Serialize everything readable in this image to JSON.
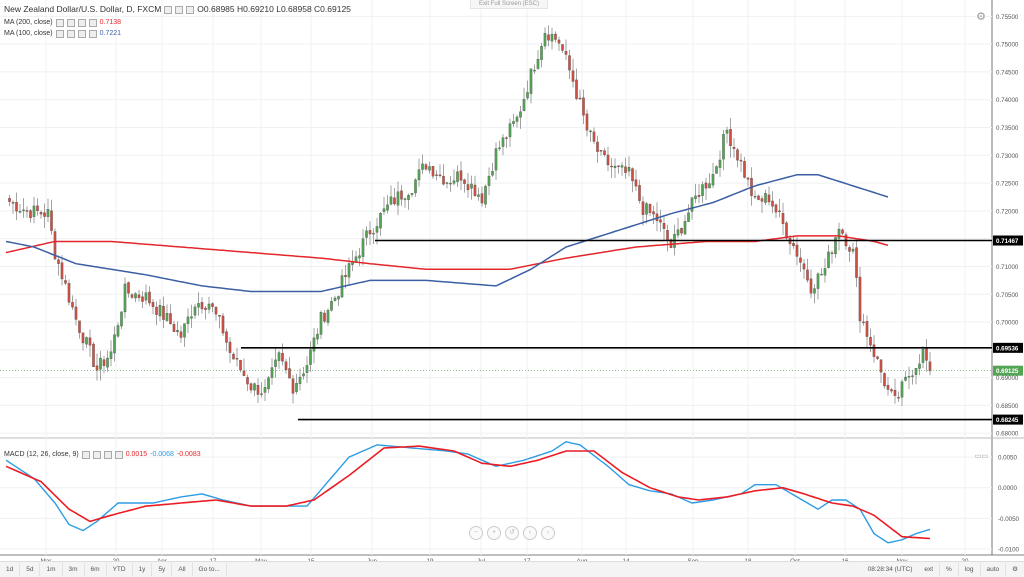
{
  "header": {
    "title": "New Zealand Dollar/U.S. Dollar, D, FXCM",
    "ohlc": "O0.68985 H0.69210 L0.68958 C0.69125",
    "ma200_label": "MA (200, close)",
    "ma200_value": "0.7138",
    "ma100_label": "MA (100, close)",
    "ma100_value": "0.7221",
    "exit_label": "Exit Full Screen (ESC)"
  },
  "macd": {
    "label": "MACD (12, 26, close, 9)",
    "v1": "0.0015",
    "v2": "-0.0068",
    "v3": "-0.0083"
  },
  "colors": {
    "up": "#53a454",
    "down": "#cf4f42",
    "ma200": "#e3262b",
    "ma100": "#3b5fa3",
    "macd_line": "#2c9ce6",
    "signal_line": "#ec1c24"
  },
  "toolbar": {
    "ranges": [
      "1d",
      "5d",
      "1m",
      "3m",
      "6m",
      "YTD",
      "1y",
      "5y",
      "All",
      "Go to..."
    ],
    "time": "08:28:34 (UTC)",
    "right_items": [
      "ext",
      "%",
      "log",
      "auto"
    ]
  },
  "chart_data": {
    "type": "candlestick",
    "price_axis": {
      "ylim": [
        0.6795,
        0.7565
      ],
      "ticks": [
        "0.75500",
        "0.75000",
        "0.74500",
        "0.74000",
        "0.73500",
        "0.73000",
        "0.72500",
        "0.72000",
        "0.71500",
        "0.71000",
        "0.70500",
        "0.70000",
        "0.69500",
        "0.69000",
        "0.68500",
        "0.68000"
      ]
    },
    "macd_axis": {
      "ylim": [
        -0.0105,
        0.0078
      ],
      "ticks": [
        "0.0050",
        "0.0000",
        "-0.0050",
        "-0.0100"
      ]
    },
    "x_labels": [
      "Mar",
      "20",
      "Apr",
      "17",
      "May",
      "15",
      "Jun",
      "19",
      "Jul",
      "17",
      "Aug",
      "14",
      "Sep",
      "18",
      "Oct",
      "16",
      "Nov",
      "20"
    ],
    "horizontal_levels": [
      {
        "label": "0.71467",
        "value": 0.71467
      },
      {
        "label": "0.69536",
        "value": 0.69536
      },
      {
        "label": "0.68245",
        "value": 0.68245
      }
    ],
    "current_price": {
      "label": "0.69125",
      "value": 0.69125
    },
    "close_anchors": [
      [
        0,
        0.722
      ],
      [
        6,
        0.72
      ],
      [
        12,
        0.7195
      ],
      [
        14,
        0.7125
      ],
      [
        20,
        0.7005
      ],
      [
        26,
        0.6915
      ],
      [
        30,
        0.6945
      ],
      [
        34,
        0.7055
      ],
      [
        40,
        0.7045
      ],
      [
        46,
        0.7005
      ],
      [
        50,
        0.6975
      ],
      [
        54,
        0.7035
      ],
      [
        58,
        0.7035
      ],
      [
        62,
        0.6985
      ],
      [
        64,
        0.6945
      ],
      [
        70,
        0.6885
      ],
      [
        74,
        0.6875
      ],
      [
        78,
        0.6935
      ],
      [
        82,
        0.6885
      ],
      [
        86,
        0.6925
      ],
      [
        90,
        0.7005
      ],
      [
        94,
        0.7045
      ],
      [
        98,
        0.7095
      ],
      [
        104,
        0.7165
      ],
      [
        110,
        0.7215
      ],
      [
        116,
        0.7245
      ],
      [
        120,
        0.7285
      ],
      [
        126,
        0.7255
      ],
      [
        130,
        0.7265
      ],
      [
        136,
        0.7225
      ],
      [
        140,
        0.7305
      ],
      [
        146,
        0.7365
      ],
      [
        150,
        0.7445
      ],
      [
        154,
        0.7525
      ],
      [
        158,
        0.7505
      ],
      [
        162,
        0.7435
      ],
      [
        166,
        0.7345
      ],
      [
        170,
        0.7295
      ],
      [
        174,
        0.7275
      ],
      [
        178,
        0.7265
      ],
      [
        182,
        0.7205
      ],
      [
        186,
        0.7185
      ],
      [
        190,
        0.7135
      ],
      [
        194,
        0.7185
      ],
      [
        198,
        0.7235
      ],
      [
        202,
        0.7265
      ],
      [
        206,
        0.7345
      ],
      [
        210,
        0.7285
      ],
      [
        214,
        0.7215
      ],
      [
        218,
        0.7225
      ],
      [
        222,
        0.7175
      ],
      [
        226,
        0.7125
      ],
      [
        230,
        0.7065
      ],
      [
        234,
        0.7095
      ],
      [
        238,
        0.7175
      ],
      [
        242,
        0.7125
      ],
      [
        244,
        0.7015
      ],
      [
        248,
        0.6945
      ],
      [
        252,
        0.6875
      ],
      [
        254,
        0.6855
      ],
      [
        258,
        0.6905
      ],
      [
        262,
        0.6945
      ],
      [
        264,
        0.6912
      ]
    ],
    "ma100_anchors": [
      [
        0,
        0.7145
      ],
      [
        8,
        0.7135
      ],
      [
        20,
        0.7105
      ],
      [
        40,
        0.7085
      ],
      [
        56,
        0.7065
      ],
      [
        70,
        0.7055
      ],
      [
        90,
        0.7055
      ],
      [
        104,
        0.7075
      ],
      [
        120,
        0.7075
      ],
      [
        140,
        0.7065
      ],
      [
        150,
        0.7095
      ],
      [
        160,
        0.7135
      ],
      [
        170,
        0.7155
      ],
      [
        180,
        0.7175
      ],
      [
        190,
        0.7195
      ],
      [
        202,
        0.7215
      ],
      [
        214,
        0.7245
      ],
      [
        226,
        0.7265
      ],
      [
        232,
        0.7265
      ],
      [
        242,
        0.7245
      ],
      [
        252,
        0.7225
      ]
    ],
    "ma200_anchors": [
      [
        0,
        0.7125
      ],
      [
        14,
        0.7145
      ],
      [
        30,
        0.7145
      ],
      [
        50,
        0.7135
      ],
      [
        70,
        0.7125
      ],
      [
        90,
        0.7115
      ],
      [
        104,
        0.7105
      ],
      [
        120,
        0.7095
      ],
      [
        144,
        0.7095
      ],
      [
        160,
        0.7115
      ],
      [
        180,
        0.7135
      ],
      [
        200,
        0.7145
      ],
      [
        214,
        0.7145
      ],
      [
        226,
        0.7155
      ],
      [
        238,
        0.7155
      ],
      [
        248,
        0.7145
      ],
      [
        252,
        0.7138
      ]
    ],
    "macd_anchors": [
      [
        0,
        0.0045
      ],
      [
        8,
        0.0015
      ],
      [
        14,
        -0.0025
      ],
      [
        18,
        -0.006
      ],
      [
        22,
        -0.007
      ],
      [
        26,
        -0.0055
      ],
      [
        32,
        -0.0025
      ],
      [
        42,
        -0.0025
      ],
      [
        50,
        -0.0015
      ],
      [
        56,
        -0.001
      ],
      [
        62,
        -0.002
      ],
      [
        70,
        -0.003
      ],
      [
        78,
        -0.003
      ],
      [
        86,
        -0.003
      ],
      [
        92,
        0.001
      ],
      [
        98,
        0.005
      ],
      [
        106,
        0.007
      ],
      [
        116,
        0.0065
      ],
      [
        126,
        0.006
      ],
      [
        132,
        0.0055
      ],
      [
        140,
        0.0035
      ],
      [
        148,
        0.0045
      ],
      [
        156,
        0.006
      ],
      [
        160,
        0.0075
      ],
      [
        164,
        0.007
      ],
      [
        172,
        0.0035
      ],
      [
        178,
        0.0005
      ],
      [
        184,
        -0.0005
      ],
      [
        190,
        -0.001
      ],
      [
        196,
        -0.0025
      ],
      [
        202,
        -0.002
      ],
      [
        210,
        -0.001
      ],
      [
        214,
        0.0005
      ],
      [
        220,
        0.0005
      ],
      [
        226,
        -0.0015
      ],
      [
        232,
        -0.0035
      ],
      [
        236,
        -0.002
      ],
      [
        240,
        -0.002
      ],
      [
        244,
        -0.0035
      ],
      [
        248,
        -0.0075
      ],
      [
        252,
        -0.009
      ],
      [
        256,
        -0.0085
      ],
      [
        260,
        -0.0075
      ],
      [
        264,
        -0.0068
      ]
    ],
    "signal_anchors": [
      [
        0,
        0.0035
      ],
      [
        10,
        0.001
      ],
      [
        18,
        -0.0035
      ],
      [
        24,
        -0.0055
      ],
      [
        30,
        -0.0045
      ],
      [
        40,
        -0.003
      ],
      [
        50,
        -0.0025
      ],
      [
        60,
        -0.002
      ],
      [
        70,
        -0.003
      ],
      [
        80,
        -0.003
      ],
      [
        88,
        -0.002
      ],
      [
        98,
        0.002
      ],
      [
        108,
        0.0065
      ],
      [
        118,
        0.0068
      ],
      [
        128,
        0.006
      ],
      [
        136,
        0.004
      ],
      [
        144,
        0.0035
      ],
      [
        152,
        0.0045
      ],
      [
        160,
        0.006
      ],
      [
        168,
        0.006
      ],
      [
        176,
        0.0025
      ],
      [
        184,
        0.0
      ],
      [
        192,
        -0.0015
      ],
      [
        198,
        -0.002
      ],
      [
        206,
        -0.0015
      ],
      [
        214,
        -0.0005
      ],
      [
        222,
        0.0
      ],
      [
        228,
        -0.001
      ],
      [
        236,
        -0.0025
      ],
      [
        242,
        -0.003
      ],
      [
        248,
        -0.0045
      ],
      [
        256,
        -0.008
      ],
      [
        264,
        -0.0083
      ]
    ]
  }
}
